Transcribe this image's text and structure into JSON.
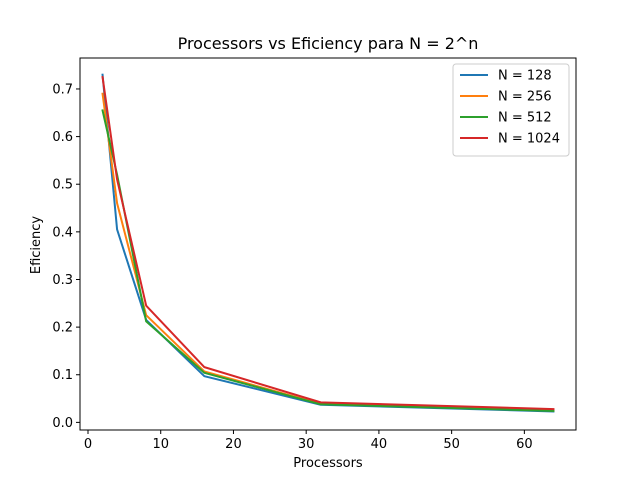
{
  "chart_data": {
    "type": "line",
    "title": "Processors vs Eficiency para N = 2^n",
    "xlabel": "Processors",
    "ylabel": "Eficiency",
    "xlim": [
      -1.1,
      67.1
    ],
    "ylim": [
      -0.016,
      0.765
    ],
    "xticks": [
      0,
      10,
      20,
      30,
      40,
      50,
      60
    ],
    "yticks": [
      0.0,
      0.1,
      0.2,
      0.3,
      0.4,
      0.5,
      0.6,
      0.7
    ],
    "grid": false,
    "legend_position": "top-right",
    "x": [
      2,
      4,
      8,
      16,
      32,
      64
    ],
    "series": [
      {
        "name": "N = 128",
        "color": "#1f77b4",
        "values": [
          0.73,
          0.405,
          0.215,
          0.097,
          0.037,
          0.023
        ]
      },
      {
        "name": "N = 256",
        "color": "#ff7f0e",
        "values": [
          0.69,
          0.46,
          0.225,
          0.107,
          0.039,
          0.026
        ]
      },
      {
        "name": "N = 512",
        "color": "#2ca02c",
        "values": [
          0.655,
          0.52,
          0.212,
          0.104,
          0.038,
          0.024
        ]
      },
      {
        "name": "N = 1024",
        "color": "#d62728",
        "values": [
          0.725,
          0.51,
          0.245,
          0.116,
          0.042,
          0.028
        ]
      }
    ]
  }
}
